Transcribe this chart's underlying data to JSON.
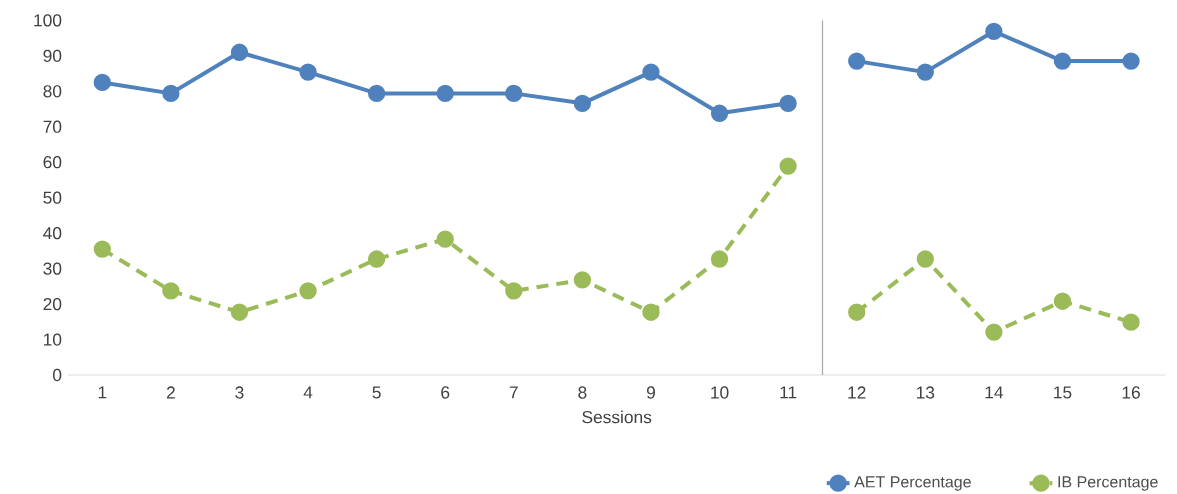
{
  "chart_data": {
    "type": "line",
    "xlabel": "Sessions",
    "x": [
      1,
      2,
      3,
      4,
      5,
      6,
      7,
      8,
      9,
      10,
      11,
      12,
      13,
      14,
      15,
      16
    ],
    "series": [
      {
        "name": "AET Percentage",
        "color": "#4f81bd",
        "line_style": "solid",
        "values": [
          82.5,
          79.4,
          91,
          85.4,
          79.4,
          79.4,
          79.4,
          76.6,
          85.4,
          73.8,
          76.6,
          88.5,
          85.4,
          96.9,
          88.5,
          88.5
        ]
      },
      {
        "name": "IB Percentage",
        "color": "#9bbb59",
        "line_style": "dashed",
        "values": [
          35.5,
          23.7,
          17.7,
          23.7,
          32.7,
          38.3,
          23.7,
          26.8,
          17.7,
          32.7,
          58.9,
          17.7,
          32.7,
          12.1,
          20.8,
          14.9
        ]
      }
    ],
    "xlim": [
      0.5,
      16.5
    ],
    "ylim": [
      0,
      100
    ],
    "xticks": [
      1,
      2,
      3,
      4,
      5,
      6,
      7,
      8,
      9,
      10,
      11,
      12,
      13,
      14,
      15,
      16
    ],
    "yticks": [
      0,
      10,
      20,
      30,
      40,
      50,
      60,
      70,
      80,
      90,
      100
    ],
    "ref_lines": [
      {
        "axis": "x",
        "value": 11.5,
        "color": "#a6a6a6"
      }
    ],
    "marker": "circle",
    "grid": false,
    "legend": "bottom right"
  }
}
